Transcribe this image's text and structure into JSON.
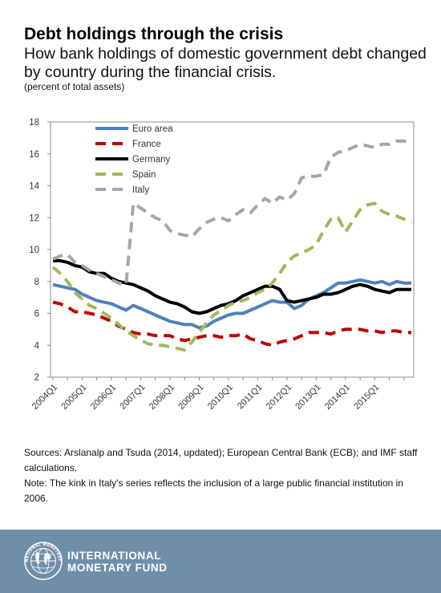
{
  "header": {
    "title": "Debt holdings through the crisis",
    "subtitle": "How bank holdings of domestic government debt changed by country during the financial crisis.",
    "units": "(percent of total assets)"
  },
  "notes": {
    "sources": "Sources: Arslanalp and Tsuda (2014, updated); European Central Bank (ECB); and IMF staff calculations.",
    "note": "Note: The kink in Italy's series reflects the inclusion of a large public financial institution in 2006."
  },
  "footer": {
    "org_line1": "INTERNATIONAL",
    "org_line2": "MONETARY FUND",
    "seal_text": "INTERNATIONAL MONETARY FUND",
    "background": "#6f8fa9"
  },
  "chart_data": {
    "type": "line",
    "title": "",
    "xlabel": "",
    "ylabel": "",
    "ylim": [
      2,
      18
    ],
    "yticks": [
      2,
      4,
      6,
      8,
      10,
      12,
      14,
      16,
      18
    ],
    "xtick_labels": [
      "2004Q1",
      "2005Q1",
      "2006Q1",
      "2007Q1",
      "2008Q1",
      "2009Q1",
      "2010Q1",
      "2011Q1",
      "2012Q1",
      "2013Q1",
      "2014Q1",
      "2015Q1"
    ],
    "quarters_per_tick": 4,
    "x_start": "2004Q1",
    "x_end": "2016Q2",
    "grid": false,
    "legend_position": "top-left",
    "series": [
      {
        "name": "Euro area",
        "color": "#4f81bd",
        "style": "solid",
        "values": [
          7.8,
          7.7,
          7.6,
          7.5,
          7.2,
          7.0,
          6.8,
          6.7,
          6.6,
          6.4,
          6.2,
          6.5,
          6.3,
          6.1,
          5.9,
          5.7,
          5.5,
          5.4,
          5.3,
          5.3,
          5.1,
          5.2,
          5.5,
          5.7,
          5.9,
          6.0,
          6.0,
          6.2,
          6.4,
          6.6,
          6.8,
          6.7,
          6.7,
          6.3,
          6.5,
          6.9,
          7.1,
          7.3,
          7.6,
          7.9,
          7.9,
          8.0,
          8.1,
          8.0,
          7.9,
          8.0,
          7.8,
          8.0,
          7.9,
          7.9
        ]
      },
      {
        "name": "France",
        "color": "#c00000",
        "style": "dashed",
        "values": [
          6.7,
          6.6,
          6.4,
          6.1,
          6.1,
          6.0,
          5.9,
          5.7,
          5.5,
          5.2,
          5.0,
          4.8,
          4.7,
          4.7,
          4.6,
          4.6,
          4.6,
          4.4,
          4.3,
          4.4,
          4.5,
          4.6,
          4.6,
          4.5,
          4.6,
          4.6,
          4.7,
          4.4,
          4.3,
          4.1,
          4.0,
          4.2,
          4.3,
          4.4,
          4.6,
          4.8,
          4.8,
          4.8,
          4.7,
          4.9,
          5.0,
          5.0,
          5.0,
          4.9,
          4.9,
          4.8,
          4.9,
          4.9,
          4.8,
          4.8
        ]
      },
      {
        "name": "Germany",
        "color": "#000000",
        "style": "solid",
        "values": [
          9.3,
          9.3,
          9.2,
          9.0,
          8.9,
          8.6,
          8.5,
          8.5,
          8.2,
          8.0,
          7.9,
          7.8,
          7.6,
          7.4,
          7.1,
          6.9,
          6.7,
          6.6,
          6.4,
          6.1,
          6.0,
          6.1,
          6.3,
          6.5,
          6.6,
          6.8,
          7.1,
          7.3,
          7.5,
          7.7,
          7.7,
          7.5,
          6.8,
          6.7,
          6.8,
          6.9,
          7.0,
          7.2,
          7.2,
          7.3,
          7.5,
          7.7,
          7.8,
          7.7,
          7.5,
          7.4,
          7.3,
          7.5,
          7.5,
          7.5
        ]
      },
      {
        "name": "Spain",
        "color": "#9bbb59",
        "style": "dashed",
        "values": [
          8.9,
          8.5,
          8.0,
          7.3,
          6.9,
          6.5,
          6.3,
          6.0,
          5.7,
          5.3,
          4.9,
          4.6,
          4.3,
          4.1,
          4.0,
          4.0,
          3.9,
          3.8,
          3.7,
          4.2,
          4.8,
          5.4,
          5.9,
          6.2,
          6.5,
          6.7,
          6.8,
          7.0,
          7.3,
          7.5,
          7.9,
          8.5,
          9.2,
          9.6,
          9.8,
          10.0,
          10.3,
          11.2,
          11.9,
          12.0,
          11.1,
          11.8,
          12.5,
          12.8,
          12.9,
          12.4,
          12.2,
          12.1,
          11.9,
          11.7
        ]
      },
      {
        "name": "Italy",
        "color": "#a6a6a6",
        "style": "dashed",
        "values": [
          9.4,
          9.6,
          9.7,
          9.2,
          9.0,
          8.7,
          8.5,
          8.3,
          8.1,
          7.9,
          7.8,
          12.9,
          12.6,
          12.3,
          12.0,
          11.8,
          11.2,
          11.0,
          10.9,
          10.8,
          11.3,
          11.7,
          11.9,
          12.0,
          11.8,
          12.2,
          12.5,
          12.3,
          12.8,
          13.2,
          12.9,
          13.3,
          13.1,
          13.5,
          14.5,
          14.6,
          14.6,
          14.7,
          15.8,
          16.1,
          16.2,
          16.4,
          16.6,
          16.5,
          16.4,
          16.6,
          16.6,
          16.8,
          16.8,
          16.7
        ]
      }
    ]
  }
}
